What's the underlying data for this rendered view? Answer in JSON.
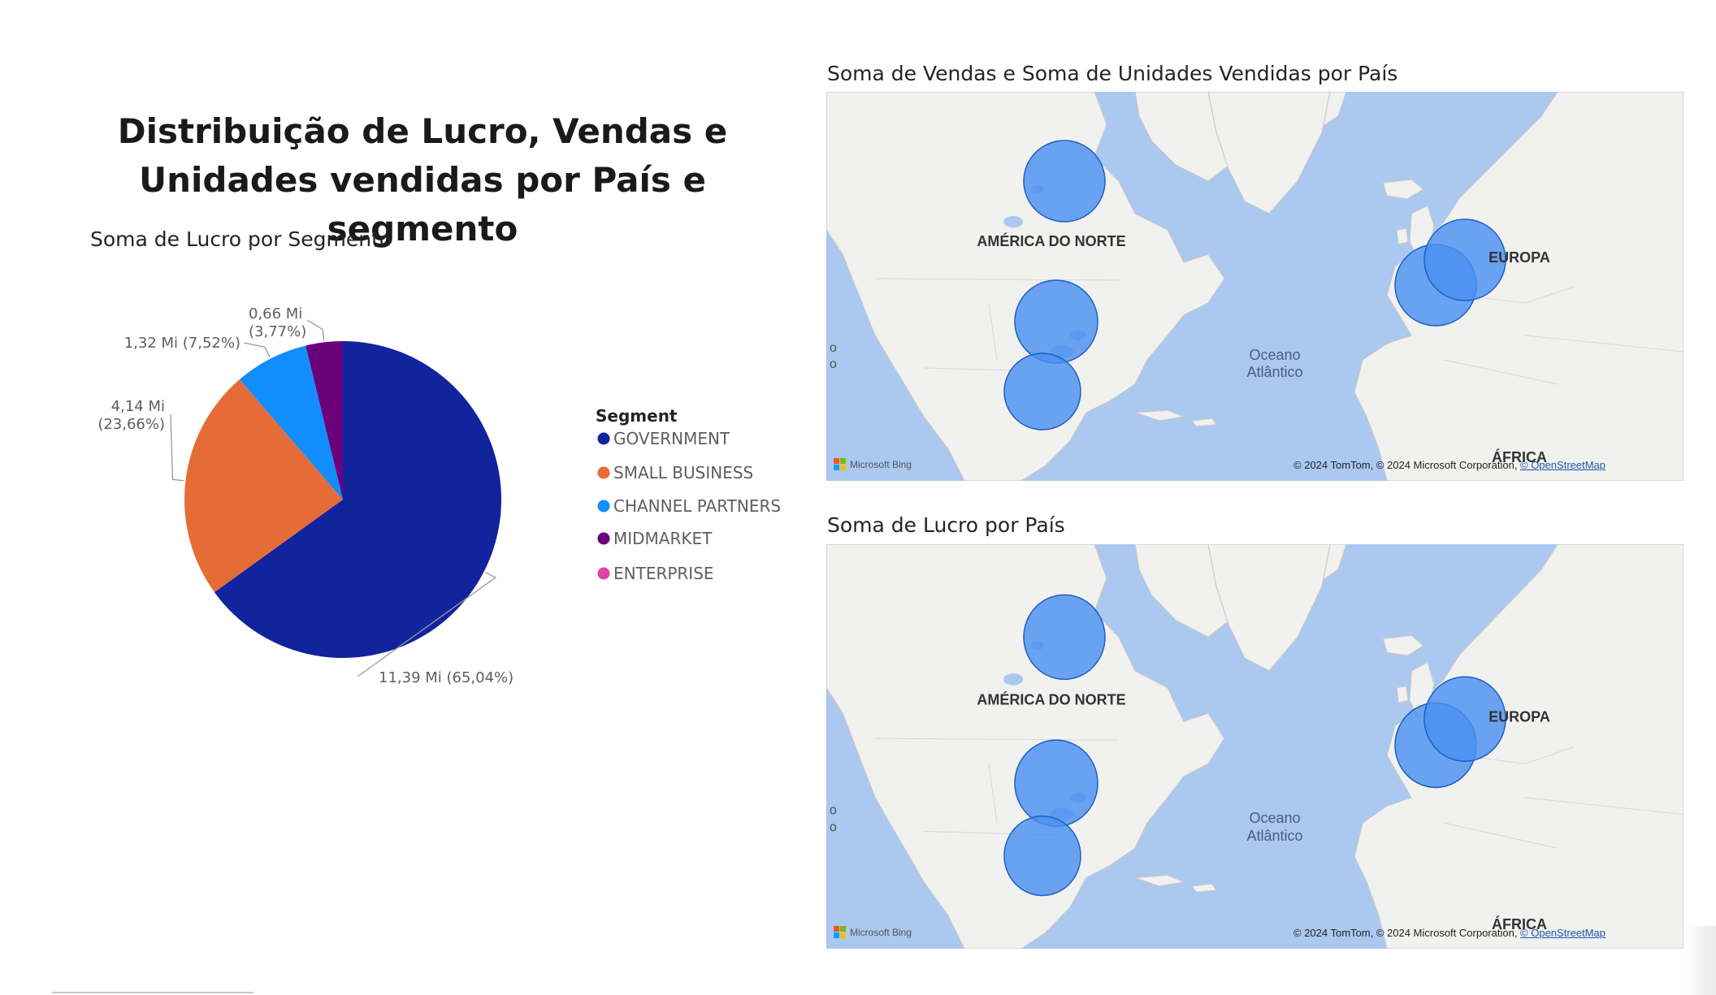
{
  "page": {
    "title": "Distribuição de Lucro, Vendas e Unidades vendidas por País e segmento"
  },
  "chart_data": [
    {
      "type": "pie",
      "title": "Soma de Lucro por Segmento",
      "legend_title": "Segment",
      "legend_position": "right",
      "categories": [
        "GOVERNMENT",
        "SMALL BUSINESS",
        "CHANNEL PARTNERS",
        "MIDMARKET",
        "ENTERPRISE"
      ],
      "values": [
        11.39,
        4.14,
        1.32,
        0.66,
        0
      ],
      "percent": [
        65.04,
        23.66,
        7.52,
        3.77,
        0
      ],
      "colors": [
        "#12239e",
        "#e66c37",
        "#118dff",
        "#6b007b",
        "#e044a7"
      ],
      "data_labels": [
        "11,39 Mi (65,04%)",
        "4,14 Mi (23,66%)",
        "1,32 Mi (7,52%)",
        "0,66 Mi (3,77%)",
        ""
      ]
    }
  ],
  "maps": [
    {
      "title": "Soma de Vendas e Soma de Unidades Vendidas por País",
      "labels": {
        "north_america": "AMÉRICA DO NORTE",
        "europe": "EUROPA",
        "ocean_line1": "Oceano",
        "ocean_line2": "Atlântico",
        "africa": "ÁFRICA"
      },
      "bubbles": [
        "Canada",
        "United States of America",
        "Mexico",
        "France",
        "Germany"
      ],
      "bubble_color": "#4a90f0",
      "attribution": "© 2024 TomTom, © 2024 Microsoft Corporation,",
      "attribution_link": "© OpenStreetMap",
      "provider": "Microsoft Bing"
    },
    {
      "title": "Soma de Lucro por País",
      "labels": {
        "north_america": "AMÉRICA DO NORTE",
        "europe": "EUROPA",
        "ocean_line1": "Oceano",
        "ocean_line2": "Atlântico",
        "africa": "ÁFRICA"
      },
      "bubbles": [
        "Canada",
        "United States of America",
        "Mexico",
        "France",
        "Germany"
      ],
      "bubble_color": "#4a90f0",
      "attribution": "© 2024 TomTom, © 2024 Microsoft Corporation,",
      "attribution_link": "© OpenStreetMap",
      "provider": "Microsoft Bing"
    }
  ],
  "colors": {
    "sea": "#aac8f0",
    "land": "#f1f1ef",
    "border": "#c9c9c9"
  }
}
